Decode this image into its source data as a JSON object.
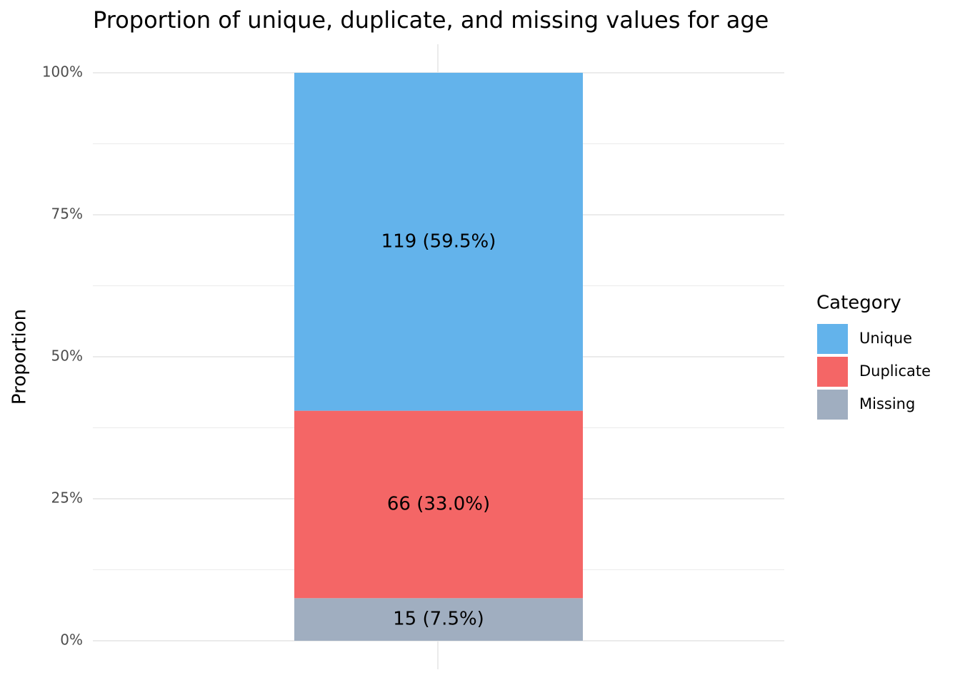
{
  "chart_data": {
    "type": "stacked_bar",
    "title": "Proportion of unique, duplicate, and missing values for age",
    "y_label": "Proportion",
    "legend_title": "Category",
    "legend_position": "right",
    "categories": [
      null
    ],
    "series": [
      {
        "name": "Unique",
        "color": "#63b3eb",
        "values": [
          0.595
        ],
        "value_labels": [
          "119 (59.5%)"
        ]
      },
      {
        "name": "Duplicate",
        "color": "#f46666",
        "values": [
          0.33
        ],
        "value_labels": [
          "66 (33.0%)"
        ]
      },
      {
        "name": "Missing",
        "color": "#a0aec0",
        "values": [
          0.075
        ],
        "value_labels": [
          "15 (7.5%)"
        ]
      }
    ],
    "ylim": [
      0,
      1
    ],
    "yticks": [
      {
        "value": 0,
        "label": "0%"
      },
      {
        "value": 0.25,
        "label": "25%"
      },
      {
        "value": 0.5,
        "label": "50%"
      },
      {
        "value": 0.75,
        "label": "75%"
      },
      {
        "value": 1,
        "label": "100%"
      }
    ],
    "minor_yticks": [
      0.125,
      0.375,
      0.625,
      0.875
    ],
    "grid": true
  }
}
